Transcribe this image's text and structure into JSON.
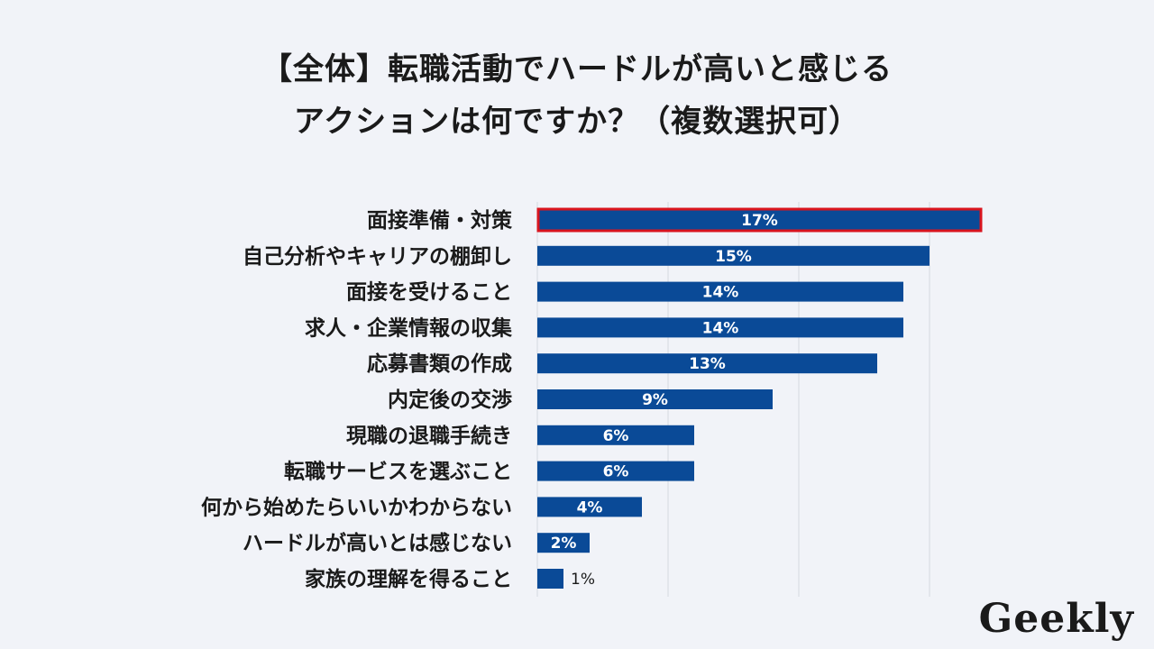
{
  "chart_data": {
    "type": "bar",
    "orientation": "horizontal",
    "title_line1": "【全体】転職活動でハードルが高いと感じる",
    "title_line2": "アクションは何ですか？（複数選択可）",
    "categories": [
      "面接準備・対策",
      "自己分析やキャリアの棚卸し",
      "面接を受けること",
      "求人・企業情報の収集",
      "応募書類の作成",
      "内定後の交渉",
      "現職の退職手続き",
      "転職サービスを選ぶこと",
      "何から始めたらいいかわからない",
      "ハードルが高いとは感じない",
      "家族の理解を得ること"
    ],
    "values": [
      17,
      15,
      14,
      14,
      13,
      9,
      6,
      6,
      4,
      2,
      1
    ],
    "value_labels": [
      "17%",
      "15%",
      "14%",
      "14%",
      "13%",
      "9%",
      "6%",
      "6%",
      "4%",
      "2%",
      "1%"
    ],
    "highlight_index": 0,
    "xlim": [
      0,
      20
    ],
    "grid": true,
    "colors": {
      "bar": "#0a4a97",
      "highlight_border": "#d9141e",
      "grid": "#d5d8e0"
    }
  },
  "brand": {
    "logo_text": "Geekly"
  }
}
